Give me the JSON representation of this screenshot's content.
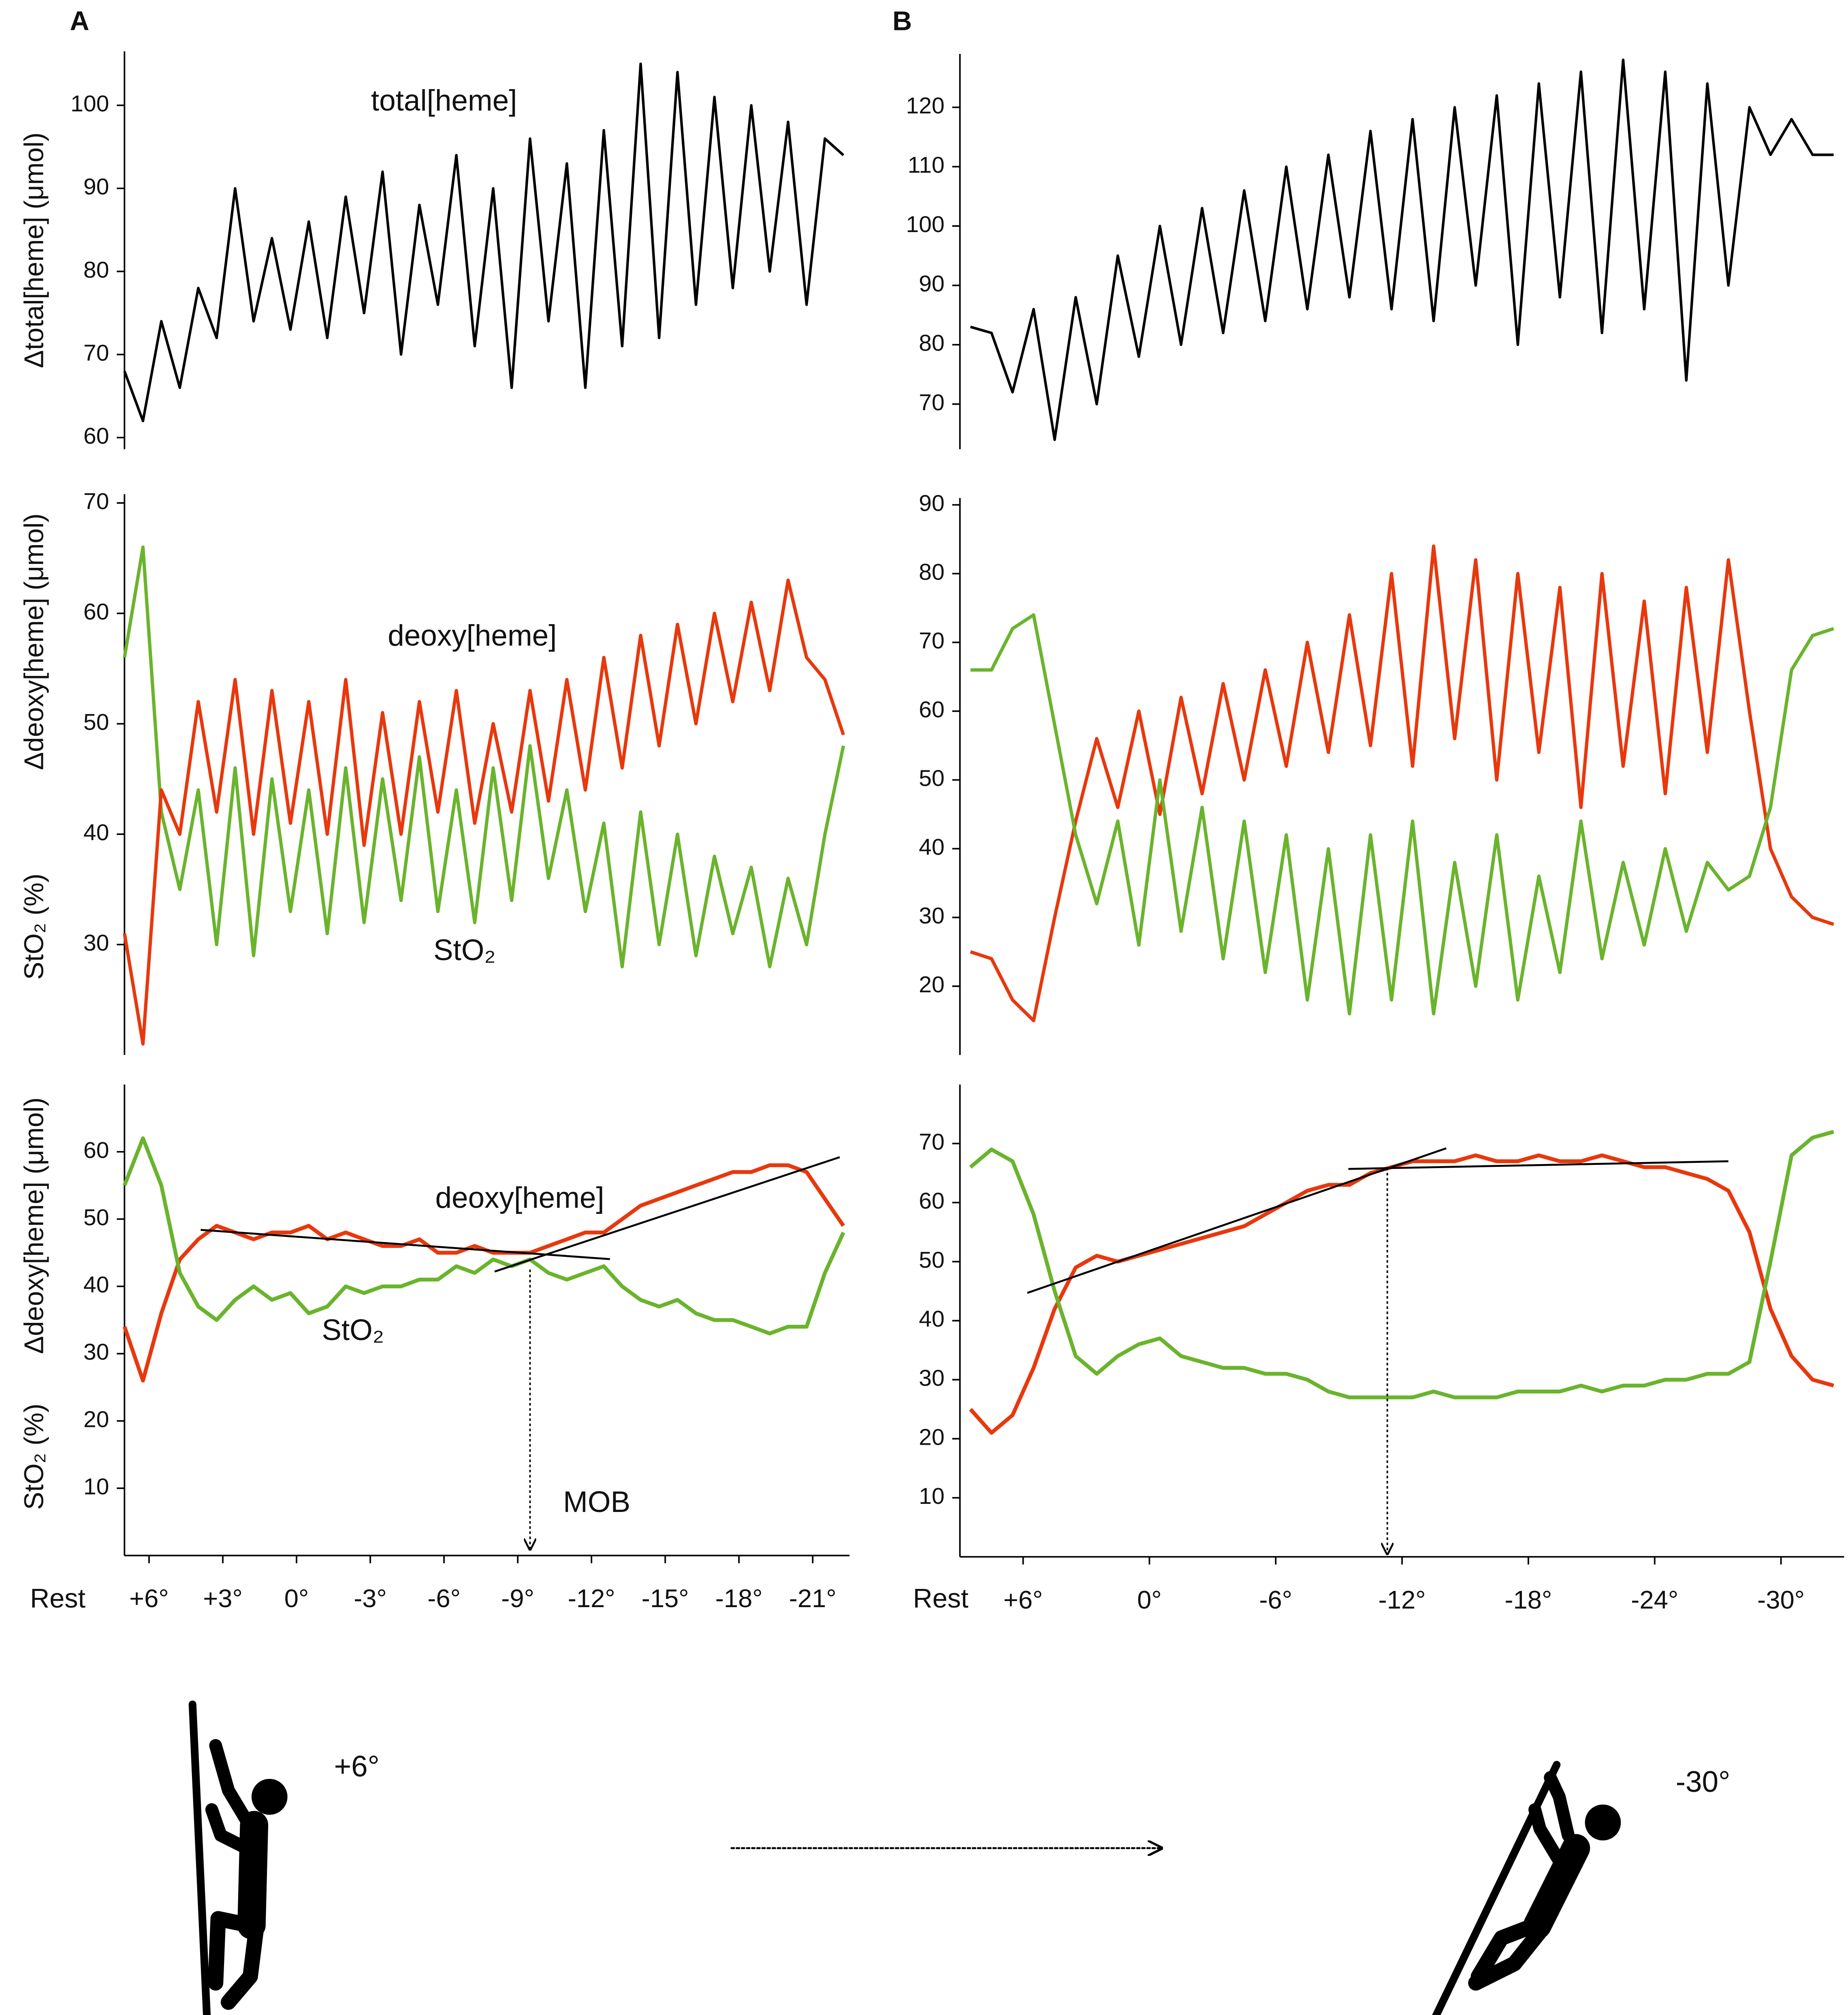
{
  "chart_data": [
    {
      "type": "line",
      "panel_label": "A",
      "ylabel": [
        "Δtotal[heme] (μmol)"
      ],
      "annotations": [
        "total[heme]"
      ],
      "xlim": [
        7,
        -22.5
      ],
      "x": [
        7,
        6.25,
        5.5,
        4.75,
        4,
        3.25,
        2.5,
        1.75,
        1,
        0.25,
        -0.5,
        -1.25,
        -2,
        -2.75,
        -3.5,
        -4.25,
        -5,
        -5.75,
        -6.5,
        -7.25,
        -8,
        -8.75,
        -9.5,
        -10.25,
        -11,
        -11.75,
        -12.5,
        -13.25,
        -14,
        -14.75,
        -15.5,
        -16.25,
        -17,
        -17.75,
        -18.5,
        -19.25,
        -20,
        -20.75,
        -21.5,
        -22.25
      ],
      "ylim": [
        58.6,
        106.5
      ],
      "yticks": [
        60,
        70,
        80,
        90,
        100
      ],
      "series": [
        {
          "color": "#000000",
          "values": [
            68,
            62,
            74,
            66,
            78,
            72,
            90,
            74,
            84,
            73,
            86,
            72,
            89,
            75,
            92,
            70,
            88,
            76,
            94,
            71,
            90,
            66,
            96,
            74,
            93,
            66,
            97,
            71,
            105,
            72,
            104,
            76,
            101,
            78,
            100,
            80,
            98,
            76,
            96,
            94
          ]
        }
      ]
    },
    {
      "type": "line",
      "ylabel": [
        "Δdeoxy[heme] (μmol)",
        "StO₂ (%)"
      ],
      "annotations": [
        "deoxy[heme]",
        "StO₂"
      ],
      "xlim": [
        7,
        -22.5
      ],
      "x": [
        7,
        6.25,
        5.5,
        4.75,
        4,
        3.25,
        2.5,
        1.75,
        1,
        0.25,
        -0.5,
        -1.25,
        -2,
        -2.75,
        -3.5,
        -4.25,
        -5,
        -5.75,
        -6.5,
        -7.25,
        -8,
        -8.75,
        -9.5,
        -10.25,
        -11,
        -11.75,
        -12.5,
        -13.25,
        -14,
        -14.75,
        -15.5,
        -16.25,
        -17,
        -17.75,
        -18.5,
        -19.25,
        -20,
        -20.75,
        -21.5,
        -22.25
      ],
      "ylim": [
        20,
        70.8
      ],
      "yticks": [
        30,
        40,
        50,
        60,
        70
      ],
      "series": [
        {
          "color": "#6ab42d",
          "values": [
            56,
            66,
            42,
            35,
            44,
            30,
            46,
            29,
            45,
            33,
            44,
            31,
            46,
            32,
            45,
            34,
            47,
            33,
            44,
            32,
            46,
            34,
            48,
            36,
            44,
            33,
            41,
            28,
            42,
            30,
            40,
            29,
            38,
            31,
            37,
            28,
            36,
            30,
            40,
            48
          ]
        },
        {
          "color": "#e8380d",
          "values": [
            31,
            21,
            44,
            40,
            52,
            42,
            54,
            40,
            53,
            41,
            52,
            40,
            54,
            39,
            51,
            40,
            52,
            42,
            53,
            41,
            50,
            42,
            53,
            43,
            54,
            44,
            56,
            46,
            58,
            48,
            59,
            50,
            60,
            52,
            61,
            53,
            63,
            56,
            54,
            49
          ]
        }
      ]
    },
    {
      "type": "line",
      "ylabel": [
        "Δdeoxy[heme] (μmol)",
        "StO₂ (%)"
      ],
      "annotations": [
        "deoxy[heme]",
        "StO₂",
        "MOB"
      ],
      "rest_label": "Rest",
      "xlim": [
        7,
        -22.5
      ],
      "x": [
        7,
        6.25,
        5.5,
        4.75,
        4,
        3.25,
        2.5,
        1.75,
        1,
        0.25,
        -0.5,
        -1.25,
        -2,
        -2.75,
        -3.5,
        -4.25,
        -5,
        -5.75,
        -6.5,
        -7.25,
        -8,
        -8.75,
        -9.5,
        -10.25,
        -11,
        -11.75,
        -12.5,
        -13.25,
        -14,
        -14.75,
        -15.5,
        -16.25,
        -17,
        -17.75,
        -18.5,
        -19.25,
        -20,
        -20.75,
        -21.5,
        -22.25
      ],
      "xticks": [
        {
          "value": 6,
          "label": "+6°"
        },
        {
          "value": 3,
          "label": "+3°"
        },
        {
          "value": 0,
          "label": "0°"
        },
        {
          "value": -3,
          "label": "-3°"
        },
        {
          "value": -6,
          "label": "-6°"
        },
        {
          "value": -9,
          "label": "-9°"
        },
        {
          "value": -12,
          "label": "-12°"
        },
        {
          "value": -15,
          "label": "-15°"
        },
        {
          "value": -18,
          "label": "-18°"
        },
        {
          "value": -21,
          "label": "-21°"
        }
      ],
      "ylim": [
        0,
        70
      ],
      "yticks": [
        10,
        20,
        30,
        40,
        50,
        60
      ],
      "series": [
        {
          "color": "#e8380d",
          "values": [
            34,
            26,
            36,
            44,
            47,
            49,
            48,
            47,
            48,
            48,
            49,
            47,
            48,
            47,
            46,
            46,
            47,
            45,
            45,
            46,
            45,
            45,
            45,
            46,
            47,
            48,
            48,
            50,
            52,
            53,
            54,
            55,
            56,
            57,
            57,
            58,
            58,
            57,
            53,
            49
          ]
        },
        {
          "color": "#6ab42d",
          "values": [
            55,
            62,
            55,
            42,
            37,
            35,
            38,
            40,
            38,
            39,
            36,
            37,
            40,
            39,
            40,
            40,
            41,
            41,
            43,
            42,
            44,
            43,
            44,
            42,
            41,
            42,
            43,
            40,
            38,
            37,
            38,
            36,
            35,
            35,
            34,
            33,
            34,
            34,
            42,
            48
          ]
        }
      ],
      "trend_lines": [
        {
          "x": [
            3.9,
            -12.75
          ],
          "values": [
            48.4,
            44.05
          ]
        },
        {
          "x": [
            -8.06,
            -22.1
          ],
          "values": [
            42.2,
            59.2
          ]
        }
      ],
      "arrow": {
        "x": [
          -9.5,
          -9.5
        ],
        "values": [
          42.5,
          0.9
        ]
      }
    },
    {
      "type": "line",
      "panel_label": "B",
      "xlim": [
        9,
        -33
      ],
      "x": [
        8.5,
        7.5,
        6.5,
        5.5,
        4.5,
        3.5,
        2.5,
        1.5,
        0.5,
        -0.5,
        -1.5,
        -2.5,
        -3.5,
        -4.5,
        -5.5,
        -6.5,
        -7.5,
        -8.5,
        -9.5,
        -10.5,
        -11.5,
        -12.5,
        -13.5,
        -14.5,
        -15.5,
        -16.5,
        -17.5,
        -18.5,
        -19.5,
        -20.5,
        -21.5,
        -22.5,
        -23.5,
        -24.5,
        -25.5,
        -26.5,
        -27.5,
        -28.5,
        -29.5,
        -30.5,
        -31.5,
        -32.5
      ],
      "ylim": [
        62.4,
        129
      ],
      "yticks": [
        70,
        80,
        90,
        100,
        110,
        120
      ],
      "series": [
        {
          "color": "#000000",
          "values": [
            83,
            82,
            72,
            86,
            64,
            88,
            70,
            95,
            78,
            100,
            80,
            103,
            82,
            106,
            84,
            110,
            86,
            112,
            88,
            116,
            86,
            118,
            84,
            120,
            90,
            122,
            80,
            124,
            88,
            126,
            82,
            128,
            86,
            126,
            74,
            124,
            90,
            120,
            112,
            118,
            112,
            112
          ]
        }
      ]
    },
    {
      "type": "line",
      "xlim": [
        9,
        -33
      ],
      "x": [
        8.5,
        7.5,
        6.5,
        5.5,
        4.5,
        3.5,
        2.5,
        1.5,
        0.5,
        -0.5,
        -1.5,
        -2.5,
        -3.5,
        -4.5,
        -5.5,
        -6.5,
        -7.5,
        -8.5,
        -9.5,
        -10.5,
        -11.5,
        -12.5,
        -13.5,
        -14.5,
        -15.5,
        -16.5,
        -17.5,
        -18.5,
        -19.5,
        -20.5,
        -21.5,
        -22.5,
        -23.5,
        -24.5,
        -25.5,
        -26.5,
        -27.5,
        -28.5,
        -29.5,
        -30.5,
        -31.5,
        -32.5
      ],
      "ylim": [
        10,
        91
      ],
      "yticks": [
        20,
        30,
        40,
        50,
        60,
        70,
        80,
        90
      ],
      "series": [
        {
          "color": "#e8380d",
          "values": [
            25,
            24,
            18,
            15,
            30,
            44,
            56,
            46,
            60,
            45,
            62,
            48,
            64,
            50,
            66,
            52,
            70,
            54,
            74,
            55,
            80,
            52,
            84,
            56,
            82,
            50,
            80,
            54,
            78,
            46,
            80,
            52,
            76,
            48,
            78,
            54,
            82,
            60,
            40,
            33,
            30,
            29
          ]
        },
        {
          "color": "#6ab42d",
          "values": [
            66,
            66,
            72,
            74,
            58,
            42,
            32,
            44,
            26,
            50,
            28,
            46,
            24,
            44,
            22,
            42,
            18,
            40,
            16,
            42,
            18,
            44,
            16,
            38,
            20,
            42,
            18,
            36,
            22,
            44,
            24,
            38,
            26,
            40,
            28,
            38,
            34,
            36,
            46,
            66,
            71,
            72
          ]
        }
      ]
    },
    {
      "type": "line",
      "rest_label": "Rest",
      "xlim": [
        9,
        -33
      ],
      "x": [
        8.5,
        7.5,
        6.5,
        5.5,
        4.5,
        3.5,
        2.5,
        1.5,
        0.5,
        -0.5,
        -1.5,
        -2.5,
        -3.5,
        -4.5,
        -5.5,
        -6.5,
        -7.5,
        -8.5,
        -9.5,
        -10.5,
        -11.5,
        -12.5,
        -13.5,
        -14.5,
        -15.5,
        -16.5,
        -17.5,
        -18.5,
        -19.5,
        -20.5,
        -21.5,
        -22.5,
        -23.5,
        -24.5,
        -25.5,
        -26.5,
        -27.5,
        -28.5,
        -29.5,
        -30.5,
        -31.5,
        -32.5
      ],
      "xticks": [
        {
          "value": 6,
          "label": "+6°"
        },
        {
          "value": 0,
          "label": "0°"
        },
        {
          "value": -6,
          "label": "-6°"
        },
        {
          "value": -12,
          "label": "-12°"
        },
        {
          "value": -18,
          "label": "-18°"
        },
        {
          "value": -24,
          "label": "-24°"
        },
        {
          "value": -30,
          "label": "-30°"
        }
      ],
      "ylim": [
        0,
        80
      ],
      "yticks": [
        10,
        20,
        30,
        40,
        50,
        60,
        70
      ],
      "series": [
        {
          "color": "#e8380d",
          "values": [
            25,
            21,
            24,
            32,
            42,
            49,
            51,
            50,
            51,
            52,
            53,
            54,
            55,
            56,
            58,
            60,
            62,
            63,
            63,
            65,
            66,
            67,
            67,
            67,
            68,
            67,
            67,
            68,
            67,
            67,
            68,
            67,
            66,
            66,
            65,
            64,
            62,
            55,
            42,
            34,
            30,
            29
          ]
        },
        {
          "color": "#6ab42d",
          "values": [
            66,
            69,
            67,
            58,
            45,
            34,
            31,
            34,
            36,
            37,
            34,
            33,
            32,
            32,
            31,
            31,
            30,
            28,
            27,
            27,
            27,
            27,
            28,
            27,
            27,
            27,
            28,
            28,
            28,
            29,
            28,
            29,
            29,
            30,
            30,
            31,
            31,
            33,
            50,
            68,
            71,
            72
          ]
        }
      ],
      "trend_lines": [
        {
          "x": [
            5.8,
            -14.1
          ],
          "values": [
            44.7,
            69.2
          ]
        },
        {
          "x": [
            -9.45,
            -27.5
          ],
          "values": [
            65.7,
            67.0
          ]
        }
      ],
      "arrow": {
        "x": [
          -11.3,
          -11.3
        ],
        "values": [
          65.9,
          0.5
        ]
      }
    }
  ],
  "illustration": {
    "start_label": "+6°",
    "end_label": "-30°"
  }
}
